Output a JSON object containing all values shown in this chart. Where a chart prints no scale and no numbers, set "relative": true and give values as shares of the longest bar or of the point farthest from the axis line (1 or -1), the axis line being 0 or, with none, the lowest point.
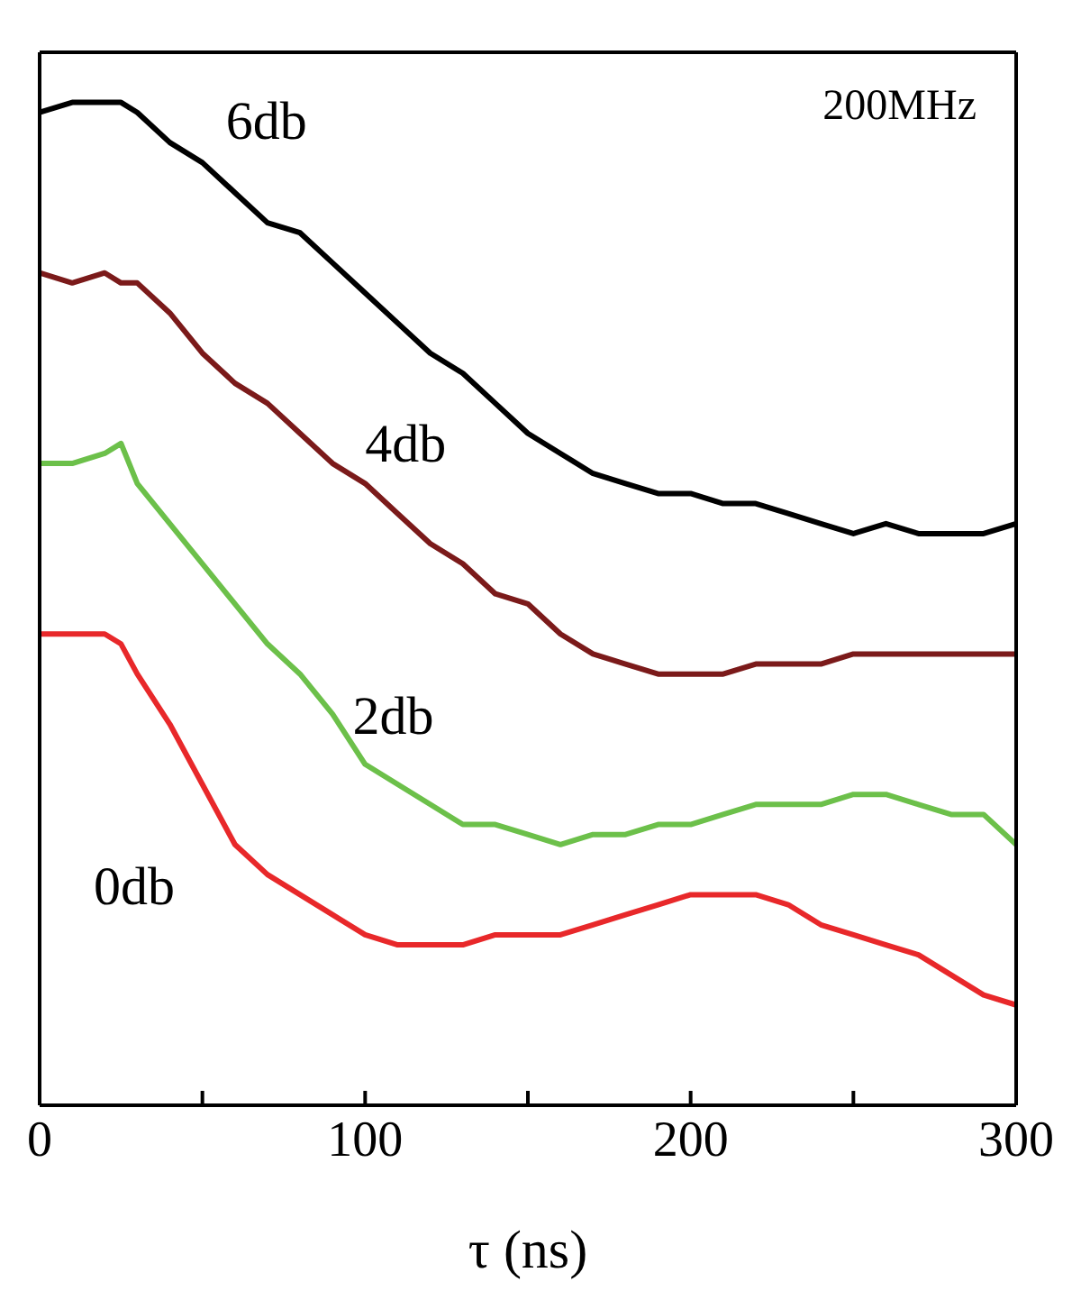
{
  "chart_data": {
    "type": "line",
    "relative": true,
    "xlabel": "τ (ns)",
    "annotations": [
      "200MHz"
    ],
    "xlim": [
      0,
      300
    ],
    "xticks": [
      0,
      {
        "value": 50,
        "label": null
      },
      100,
      {
        "value": 150,
        "label": null
      },
      200,
      {
        "value": 250,
        "label": null
      },
      300
    ],
    "marker": "none",
    "line_style": "solid",
    "x": [
      0,
      10,
      20,
      25,
      30,
      40,
      50,
      60,
      70,
      80,
      90,
      100,
      110,
      120,
      130,
      140,
      150,
      160,
      170,
      180,
      190,
      200,
      210,
      220,
      230,
      240,
      250,
      260,
      270,
      280,
      290,
      300
    ],
    "series": [
      {
        "name": "6db",
        "color": "#000000",
        "values": [
          0.99,
          1.0,
          1.0,
          1.0,
          0.99,
          0.96,
          0.94,
          0.91,
          0.88,
          0.87,
          0.84,
          0.81,
          0.78,
          0.75,
          0.73,
          0.7,
          0.67,
          0.65,
          0.63,
          0.62,
          0.61,
          0.61,
          0.6,
          0.6,
          0.59,
          0.58,
          0.57,
          0.58,
          0.57,
          0.57,
          0.57,
          0.58
        ]
      },
      {
        "name": "4db",
        "color": "#7b1a1a",
        "values": [
          0.83,
          0.82,
          0.83,
          0.82,
          0.82,
          0.79,
          0.75,
          0.72,
          0.7,
          0.67,
          0.64,
          0.62,
          0.59,
          0.56,
          0.54,
          0.51,
          0.5,
          0.47,
          0.45,
          0.44,
          0.43,
          0.43,
          0.43,
          0.44,
          0.44,
          0.44,
          0.45,
          0.45,
          0.45,
          0.45,
          0.45,
          0.45
        ]
      },
      {
        "name": "2db",
        "color": "#6cc04a",
        "values": [
          0.64,
          0.64,
          0.65,
          0.66,
          0.62,
          0.58,
          0.54,
          0.5,
          0.46,
          0.43,
          0.39,
          0.34,
          0.32,
          0.3,
          0.28,
          0.28,
          0.27,
          0.26,
          0.27,
          0.27,
          0.28,
          0.28,
          0.29,
          0.3,
          0.3,
          0.3,
          0.31,
          0.31,
          0.3,
          0.29,
          0.29,
          0.26
        ]
      },
      {
        "name": "0db",
        "color": "#e8282a",
        "values": [
          0.47,
          0.47,
          0.47,
          0.46,
          0.43,
          0.38,
          0.32,
          0.26,
          0.23,
          0.21,
          0.19,
          0.17,
          0.16,
          0.16,
          0.16,
          0.17,
          0.17,
          0.17,
          0.18,
          0.19,
          0.2,
          0.21,
          0.21,
          0.21,
          0.2,
          0.18,
          0.17,
          0.16,
          0.15,
          0.13,
          0.11,
          0.1
        ]
      }
    ]
  }
}
